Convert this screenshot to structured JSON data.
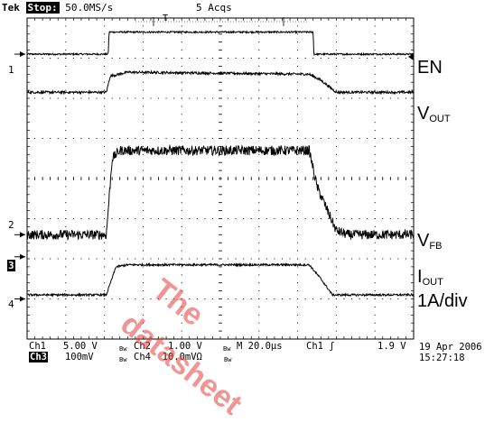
{
  "header": {
    "brand": "Tek",
    "state": "Stop:",
    "sample_rate": "50.0MS/s",
    "acqs": "5 Acqs",
    "trigger_marker": "T"
  },
  "signal_labels": {
    "en": "EN",
    "vout_main": "V",
    "vout_sub": "OUT",
    "vfb_main": "V",
    "vfb_sub": "FB",
    "iout_main": "I",
    "iout_sub": "OUT",
    "iout_scale": "1A/div"
  },
  "channel_markers": {
    "ch1": "1",
    "ch2": "2",
    "ch3": "3",
    "ch4": "4"
  },
  "footer": {
    "ch1_label": "Ch1",
    "ch1_scale": "5.00 V",
    "ch2_label": "Ch2",
    "ch2_scale": "1.00 V",
    "ch3_label": "Ch3",
    "ch3_scale": "100mV",
    "ch4_label": "Ch4",
    "ch4_scale": "10.0mVΩ",
    "timebase": "M 20.0µs",
    "trig_source": "Ch1",
    "trig_symbol": "ʃ",
    "trig_level": "1.9 V",
    "date": "19 Apr 2006",
    "time": "15:27:18",
    "bw_mark": "Bw"
  },
  "watermark": {
    "line1": "The",
    "line2": "datasheet"
  },
  "chart_data": {
    "type": "line",
    "x_unit_per_div": "20.0µs",
    "x_divisions": 10,
    "y_divisions": 8,
    "grid": true,
    "xlim": [
      0,
      10
    ],
    "ylim": [
      0,
      8
    ],
    "series": [
      {
        "name": "EN",
        "x": [
          0,
          2.1,
          2.12,
          7.4,
          7.42,
          10
        ],
        "y": [
          7.1,
          7.1,
          7.65,
          7.65,
          7.1,
          7.1
        ],
        "noise": 0.02
      },
      {
        "name": "VOUT",
        "x": [
          0,
          2.05,
          2.15,
          2.6,
          7.3,
          7.6,
          8.0,
          10
        ],
        "y": [
          6.15,
          6.15,
          6.55,
          6.65,
          6.6,
          6.45,
          6.15,
          6.15
        ],
        "noise": 0.03
      },
      {
        "name": "VFB",
        "x": [
          0,
          2.05,
          2.2,
          2.4,
          7.3,
          7.5,
          8.0,
          8.3,
          10
        ],
        "y": [
          2.6,
          2.6,
          4.5,
          4.7,
          4.7,
          3.8,
          2.7,
          2.6,
          2.6
        ],
        "noise": 0.12
      },
      {
        "name": "IOUT",
        "x": [
          0,
          2.05,
          2.3,
          2.6,
          7.3,
          7.6,
          7.9,
          10
        ],
        "y": [
          1.1,
          1.1,
          1.8,
          1.85,
          1.85,
          1.5,
          1.1,
          1.1
        ],
        "noise": 0.025
      }
    ]
  }
}
